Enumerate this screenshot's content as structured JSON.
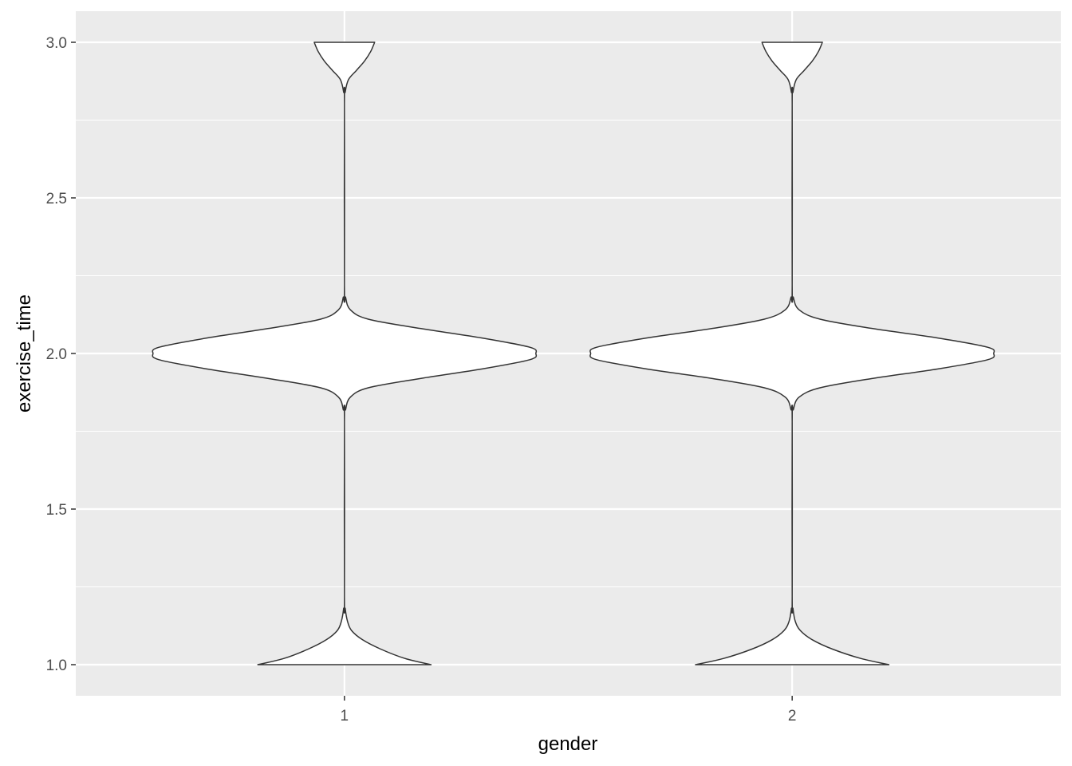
{
  "chart_data": {
    "type": "violin",
    "title": "",
    "xlabel": "gender",
    "ylabel": "exercise_time",
    "categories": [
      "1",
      "2"
    ],
    "ylim": [
      0.9,
      3.1
    ],
    "y_ticks": [
      1.0,
      1.5,
      2.0,
      2.5,
      3.0
    ],
    "y_tick_labels": [
      "1.0",
      "1.5",
      "2.0",
      "2.5",
      "3.0"
    ],
    "grid": true,
    "legend": "none",
    "colors": {
      "panel": "#ebebeb",
      "grid": "#ffffff",
      "violin_fill": "#ffffff",
      "violin_outline": "#333333",
      "tick": "#333333"
    },
    "series": [
      {
        "category": "1",
        "density_profile": [
          {
            "y": 1.0,
            "w": 0.43
          },
          {
            "y": 1.02,
            "w": 0.3
          },
          {
            "y": 1.05,
            "w": 0.18
          },
          {
            "y": 1.08,
            "w": 0.09
          },
          {
            "y": 1.11,
            "w": 0.035
          },
          {
            "y": 1.14,
            "w": 0.015
          },
          {
            "y": 1.18,
            "w": 0.004
          },
          {
            "y": 1.22,
            "w": 0.0
          },
          {
            "y": 1.78,
            "w": 0.0
          },
          {
            "y": 1.82,
            "w": 0.006
          },
          {
            "y": 1.86,
            "w": 0.03
          },
          {
            "y": 1.89,
            "w": 0.12
          },
          {
            "y": 1.92,
            "w": 0.38
          },
          {
            "y": 1.95,
            "w": 0.68
          },
          {
            "y": 1.98,
            "w": 0.92
          },
          {
            "y": 2.0,
            "w": 0.95
          },
          {
            "y": 2.02,
            "w": 0.92
          },
          {
            "y": 2.05,
            "w": 0.68
          },
          {
            "y": 2.08,
            "w": 0.38
          },
          {
            "y": 2.11,
            "w": 0.12
          },
          {
            "y": 2.14,
            "w": 0.03
          },
          {
            "y": 2.18,
            "w": 0.006
          },
          {
            "y": 2.22,
            "w": 0.0
          },
          {
            "y": 2.8,
            "w": 0.0
          },
          {
            "y": 2.84,
            "w": 0.004
          },
          {
            "y": 2.88,
            "w": 0.02
          },
          {
            "y": 2.91,
            "w": 0.06
          },
          {
            "y": 2.94,
            "w": 0.1
          },
          {
            "y": 2.97,
            "w": 0.13
          },
          {
            "y": 3.0,
            "w": 0.15
          }
        ]
      },
      {
        "category": "2",
        "density_profile": [
          {
            "y": 1.0,
            "w": 0.48
          },
          {
            "y": 1.02,
            "w": 0.34
          },
          {
            "y": 1.05,
            "w": 0.2
          },
          {
            "y": 1.08,
            "w": 0.1
          },
          {
            "y": 1.11,
            "w": 0.04
          },
          {
            "y": 1.14,
            "w": 0.015
          },
          {
            "y": 1.18,
            "w": 0.004
          },
          {
            "y": 1.22,
            "w": 0.0
          },
          {
            "y": 1.78,
            "w": 0.0
          },
          {
            "y": 1.82,
            "w": 0.006
          },
          {
            "y": 1.86,
            "w": 0.035
          },
          {
            "y": 1.89,
            "w": 0.14
          },
          {
            "y": 1.92,
            "w": 0.4
          },
          {
            "y": 1.95,
            "w": 0.72
          },
          {
            "y": 1.98,
            "w": 0.97
          },
          {
            "y": 2.0,
            "w": 1.0
          },
          {
            "y": 2.02,
            "w": 0.97
          },
          {
            "y": 2.05,
            "w": 0.72
          },
          {
            "y": 2.08,
            "w": 0.4
          },
          {
            "y": 2.11,
            "w": 0.14
          },
          {
            "y": 2.14,
            "w": 0.035
          },
          {
            "y": 2.18,
            "w": 0.006
          },
          {
            "y": 2.22,
            "w": 0.0
          },
          {
            "y": 2.8,
            "w": 0.0
          },
          {
            "y": 2.84,
            "w": 0.004
          },
          {
            "y": 2.88,
            "w": 0.02
          },
          {
            "y": 2.91,
            "w": 0.06
          },
          {
            "y": 2.94,
            "w": 0.1
          },
          {
            "y": 2.97,
            "w": 0.13
          },
          {
            "y": 3.0,
            "w": 0.15
          }
        ]
      }
    ]
  }
}
